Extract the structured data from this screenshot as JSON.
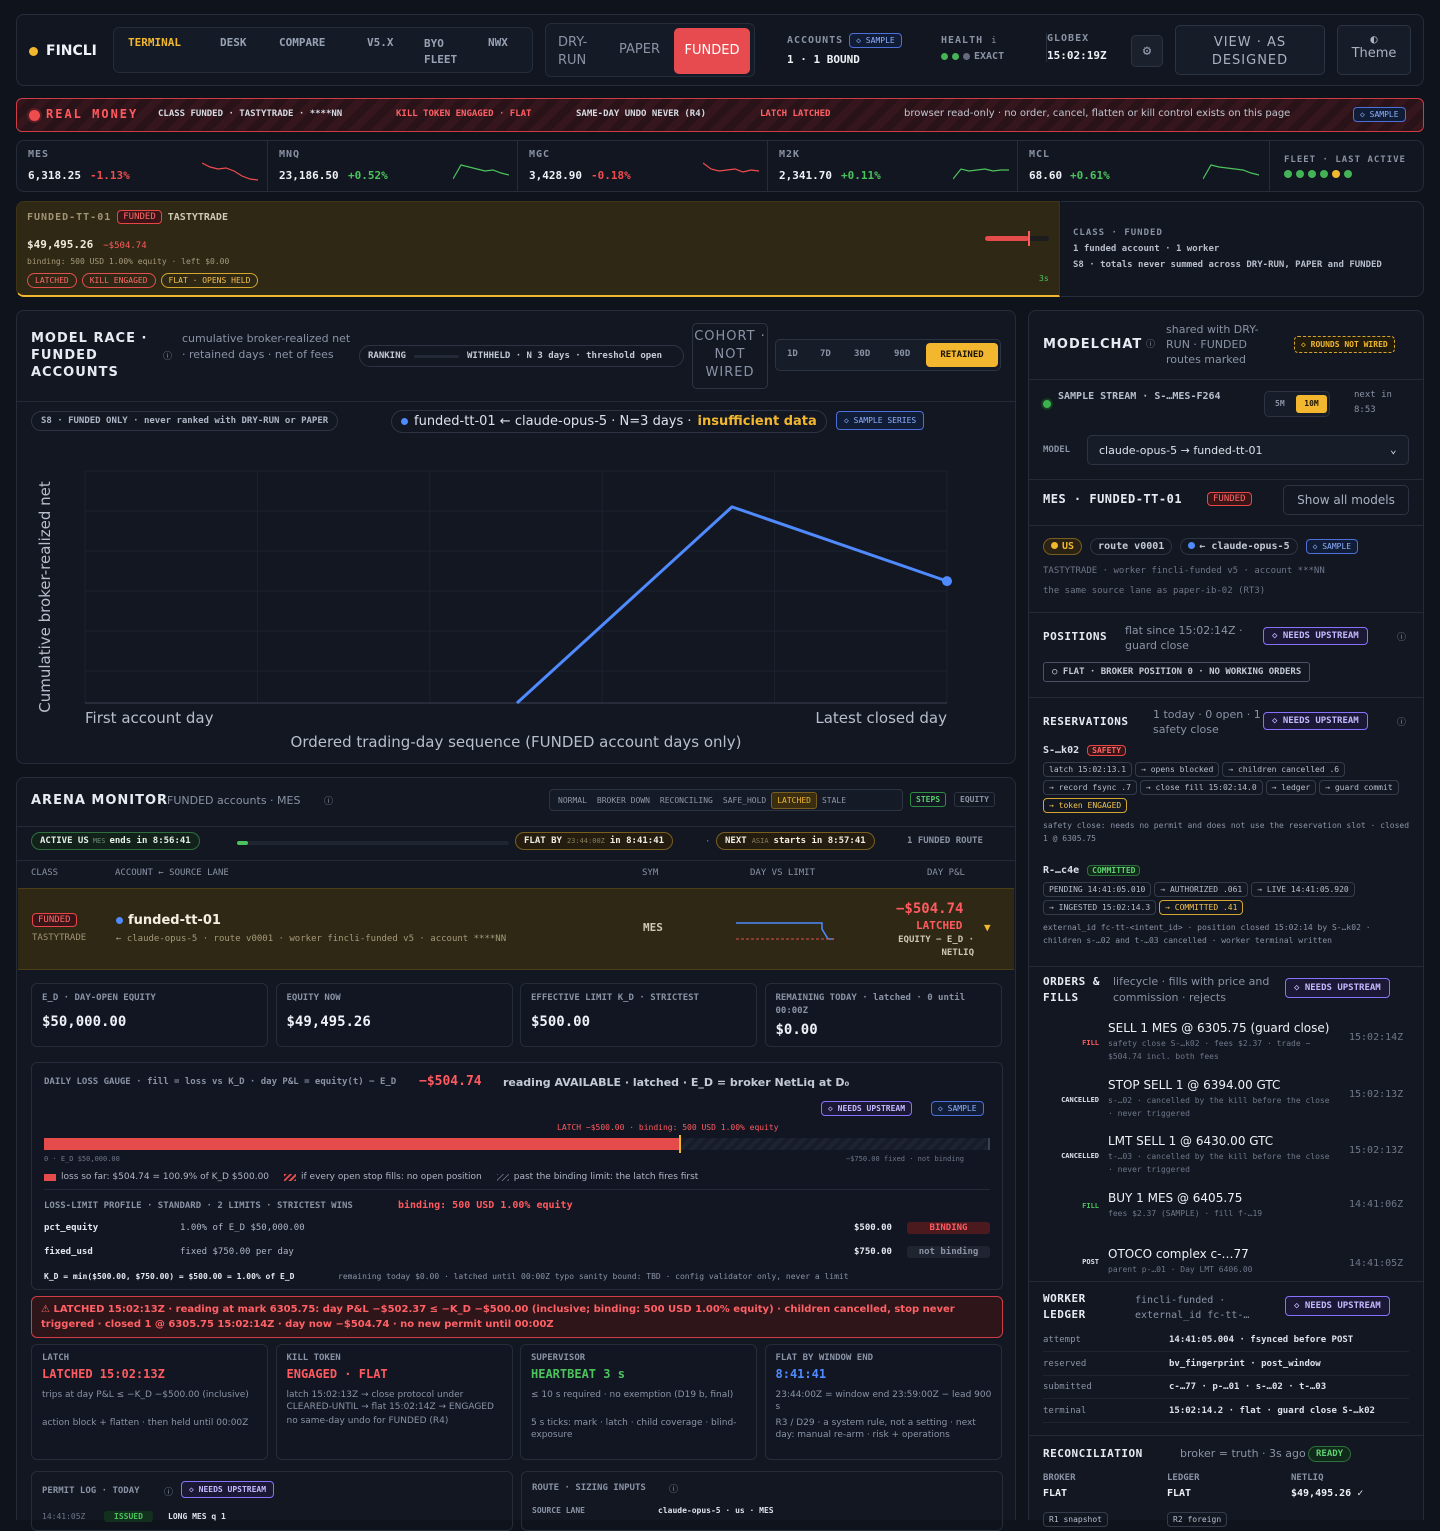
{
  "app": {
    "name": "FINCLI",
    "nav": [
      "TERMINAL",
      "DESK",
      "COMPARE",
      "V5.X",
      "BYO FLEET",
      "NWX"
    ],
    "modes": [
      "DRY-RUN",
      "PAPER",
      "FUNDED"
    ],
    "accounts_label": "ACCOUNTS",
    "accounts_sample": "◇ SAMPLE",
    "accounts_value": "1 · 1 BOUND",
    "health_label": "HEALTH",
    "health_value": "EXACT",
    "globex_label": "GLOBEX",
    "globex_value": "15:02:19Z",
    "view_label": "VIEW · AS DESIGNED",
    "theme_label": "Theme"
  },
  "banner": {
    "title": "REAL MONEY",
    "class": "CLASS FUNDED · TASTYTRADE · ****NN",
    "kill": "KILL TOKEN ENGAGED · FLAT",
    "undo": "SAME-DAY UNDO NEVER (R4)",
    "latch": "LATCH LATCHED",
    "readonly": "browser read-only · no order, cancel, flatten or kill control exists on this page",
    "sample": "◇ SAMPLE"
  },
  "tickers": [
    {
      "sym": "MES",
      "price": "6,318.25",
      "chg": "-1.13%",
      "up": false
    },
    {
      "sym": "MNQ",
      "price": "23,186.50",
      "chg": "+0.52%",
      "up": true
    },
    {
      "sym": "MGC",
      "price": "3,428.90",
      "chg": "-0.18%",
      "up": false
    },
    {
      "sym": "M2K",
      "price": "2,341.70",
      "chg": "+0.11%",
      "up": true
    },
    {
      "sym": "MCL",
      "price": "68.60",
      "chg": "+0.61%",
      "up": true
    }
  ],
  "fleet": {
    "label": "FLEET · LAST ACTIVE"
  },
  "account": {
    "name": "FUNDED-TT-01",
    "tag": "FUNDED",
    "broker": "TASTYTRADE",
    "equity": "$49,495.26",
    "pl": "−$504.74",
    "binding": "binding: 500 USD 1.00% equity · left $0.00",
    "tags": [
      "LATCHED",
      "KILL ENGAGED",
      "FLAT · OPENS HELD"
    ],
    "age": "3s"
  },
  "class_info": {
    "title": "CLASS · FUNDED",
    "line1": "1 funded account · 1 worker",
    "line2": "S8 · totals never summed across DRY-RUN, PAPER and FUNDED"
  },
  "race": {
    "title": "MODEL RACE · FUNDED ACCOUNTS",
    "sub": "cumulative broker-realized net · retained days · net of fees",
    "ranking": "RANKING",
    "withheld": "WITHHELD · N 3 days · threshold open",
    "cohort": "COHORT · NOT WIRED",
    "ranges": [
      "1D",
      "7D",
      "30D",
      "90D",
      "RETAINED"
    ],
    "s8": "S8 · FUNDED ONLY · never ranked with DRY-RUN or PAPER",
    "series_label": "funded-tt-01 ← claude-opus-5 · N=3 days ·",
    "insufficient": "insufficient data",
    "sample_series": "◇ SAMPLE SERIES"
  },
  "chart_data": {
    "type": "line",
    "title": "",
    "xlabel": "Ordered trading-day sequence (FUNDED account days only)",
    "ylabel": "Cumulative broker-realized net",
    "x_tick_labels": [
      "First account day",
      "Latest closed day"
    ],
    "series": [
      {
        "name": "funded-tt-01 ← claude-opus-5",
        "values": [
          -504.74,
          1120,
          505
        ]
      }
    ],
    "ylim": [
      -504.74,
      1500
    ],
    "grid": true
  },
  "arena": {
    "title": "ARENA MONITOR",
    "sub": "FUNDED accounts · MES",
    "states": [
      "NORMAL",
      "BROKER DOWN",
      "RECONCILING",
      "SAFE_HOLD",
      "LATCHED",
      "STALE"
    ],
    "steps": "STEPS",
    "equity": "EQUITY",
    "active": "ACTIVE US",
    "active_tz": "MES",
    "active_ends": "ends in 8:56:41",
    "flatby": "FLAT BY",
    "flat_tz": "23:44:00Z",
    "flat_in": "in 8:41:41",
    "next": "NEXT",
    "next_tz": "ASIA",
    "next_in": "starts in 8:57:41",
    "routes": "1 FUNDED ROUTE",
    "cols": [
      "CLASS",
      "ACCOUNT ← SOURCE LANE",
      "SYM",
      "DAY VS LIMIT",
      "DAY P&L"
    ],
    "row_tag": "FUNDED",
    "row_broker": "TASTYTRADE",
    "row_account": "funded-tt-01",
    "row_lane": "← claude-opus-5 · route v0001 · worker fincli-funded v5 · account ****NN",
    "row_sym": "MES",
    "row_pl": "−$504.74",
    "row_state": "LATCHED",
    "row_formula": "EQUITY − E_D · NETLIQ"
  },
  "metrics": [
    {
      "label": "E_D · DAY-OPEN EQUITY",
      "value": "$50,000.00"
    },
    {
      "label": "EQUITY NOW",
      "value": "$49,495.26"
    },
    {
      "label": "EFFECTIVE LIMIT K_D · STRICTEST",
      "value": "$500.00"
    },
    {
      "label": "REMAINING TODAY · latched · 0 until 00:00Z",
      "value": "$0.00"
    }
  ],
  "gauge": {
    "title": "DAILY LOSS GAUGE · fill = loss vs K_D · day P&L = equity(t) − E_D",
    "value": "−$504.74",
    "reading": "reading AVAILABLE · latched · E_D = broker NetLiq at D₀",
    "needs": "◇ NEEDS UPSTREAM",
    "sample": "◇ SAMPLE",
    "latch": "LATCH −$500.00 · binding: 500 USD 1.00% equity",
    "left": "0 · E_D $50,000.00",
    "right": "−$750.00 fixed · not binding",
    "legend1": "loss so far: $504.74 = 100.9% of K_D $500.00",
    "legend2": "if every open stop fills: no open position",
    "legend3": "past the binding limit: the latch fires first",
    "fill_fraction": 0.673
  },
  "profile": {
    "title": "LOSS-LIMIT PROFILE · STANDARD · 2 LIMITS · STRICTEST WINS",
    "binding": "binding: 500 USD 1.00% equity",
    "rows": [
      {
        "k": "pct_equity",
        "desc": "1.00% of E_D $50,000.00",
        "val": "$500.00",
        "state": "BINDING"
      },
      {
        "k": "fixed_usd",
        "desc": "fixed $750.00 per day",
        "val": "$750.00",
        "state": "not binding"
      }
    ],
    "kd": "K_D = min($500.00, $750.00) = $500.00 = 1.00% of E_D",
    "kd_note": "remaining today $0.00 · latched until 00:00Z   typo sanity bound: TBD · config validator only, never a limit"
  },
  "alert": "⚠ LATCHED 15:02:13Z · reading at mark 6305.75: day P&L −$502.37 ≤ −K_D −$500.00 (inclusive; binding: 500 USD 1.00% equity) · children cancelled, stop never triggered · closed 1 @ 6305.75 15:02:14Z · day now −$504.74 · no new permit until 00:00Z",
  "cards": [
    {
      "label": "LATCH",
      "value": "LATCHED 15:02:13Z",
      "l1": "trips at day P&L ≤ −K_D −$500.00 (inclusive)",
      "l2": "action block + flatten · then held until 00:00Z"
    },
    {
      "label": "KILL TOKEN",
      "value": "ENGAGED · FLAT",
      "l1": "latch 15:02:13Z → close protocol under CLEARED-UNTIL → flat 15:02:14Z → ENGAGED",
      "l2": "no same-day undo for FUNDED (R4)"
    },
    {
      "label": "SUPERVISOR",
      "value": "HEARTBEAT 3 s",
      "l1": "≤ 10 s required · no exemption (D19 b, final)",
      "l2": "5 s ticks: mark · latch · child coverage · blind-exposure"
    },
    {
      "label": "FLAT BY WINDOW END",
      "value": "8:41:41",
      "l1": "23:44:00Z = window end 23:59:00Z − lead 900 s",
      "l2": "R3 / D29 · a system rule, not a setting · next day: manual re-arm · risk + operations"
    }
  ],
  "permit": {
    "title": "PERMIT LOG · TODAY",
    "needs": "◇ NEEDS UPSTREAM",
    "time": "14:41:05Z",
    "state": "ISSUED",
    "text": "LONG MES q 1"
  },
  "route": {
    "title": "ROUTE · SIZING INPUTS",
    "k": "SOURCE LANE",
    "v": "claude-opus-5 · us · MES"
  },
  "modelchat": {
    "title": "MODELCHAT",
    "sub": "shared with DRY-RUN · FUNDED routes marked",
    "rounds": "◇ ROUNDS NOT WIRED",
    "stream": "SAMPLE STREAM · S-…MES-F264",
    "tabs": [
      "5M",
      "10M"
    ],
    "next": "next in 8:53",
    "model_label": "MODEL",
    "model_value": "claude-opus-5 → funded-tt-01",
    "acct_title": "MES · FUNDED-TT-01",
    "acct_tag": "FUNDED",
    "show_all": "Show all models",
    "us": "US",
    "route": "route v0001",
    "lane": "← claude-opus-5",
    "sample": "◇ SAMPLE",
    "line1": "TASTYTRADE · worker fincli-funded v5 · account ***NN",
    "line2": "the same source lane as paper-ib-02 (RT3)"
  },
  "positions": {
    "title": "POSITIONS",
    "sub": "flat since 15:02:14Z · guard close",
    "needs": "◇ NEEDS UPSTREAM",
    "flat": "○ FLAT · BROKER POSITION 0 · NO WORKING ORDERS"
  },
  "reservations": {
    "title": "RESERVATIONS",
    "sub": "1 today · 0 open · 1 safety close",
    "needs": "◇ NEEDS UPSTREAM",
    "r1": "S-…k02",
    "r1tag": "SAFETY",
    "r1chips": [
      "latch 15:02:13.1",
      "→ opens blocked",
      "→ children cancelled .6",
      "→ record fsync .7",
      "→ close fill 15:02:14.0",
      "→ ledger",
      "→ guard commit",
      "→ token ENGAGED"
    ],
    "r1note": "safety close: needs no permit and does not use the reservation slot · closed 1 @ 6305.75",
    "r2": "R-…c4e",
    "r2tag": "COMMITTED",
    "r2chips": [
      "PENDING 14:41:05.010",
      "→ AUTHORIZED .061",
      "→ LIVE 14:41:05.920",
      "→ INGESTED 15:02:14.3",
      "→ COMMITTED .41"
    ],
    "r2note": "external_id fc-tt-<intent_id> · position closed 15:02:14 by S-…k02 · children s-…02 and t-…03 cancelled · worker terminal written"
  },
  "orders": {
    "title": "ORDERS & FILLS",
    "sub": "lifecycle · fills with price and commission · rejects",
    "needs": "◇ NEEDS UPSTREAM",
    "items": [
      {
        "kind": "FILL",
        "main": "SELL 1 MES @ 6305.75 (guard close)",
        "sub": "safety close S-…k02 · fees $2.37 · trade −$504.74 incl. both fees",
        "time": "15:02:14Z"
      },
      {
        "kind": "CANCELLED",
        "main": "STOP SELL 1 @ 6394.00 GTC",
        "sub": "s-…02 · cancelled by the kill before the close · never triggered",
        "time": "15:02:13Z"
      },
      {
        "kind": "CANCELLED",
        "main": "LMT SELL 1 @ 6430.00 GTC",
        "sub": "t-…03 · cancelled by the kill before the close · never triggered",
        "time": "15:02:13Z"
      },
      {
        "kind": "FILL",
        "main": "BUY 1 MES @ 6405.75",
        "sub": "fees $2.37 (SAMPLE) · fill f-…19",
        "time": "14:41:06Z"
      },
      {
        "kind": "POST",
        "main": "OTOCO complex c-…77",
        "sub": "parent p-…01 · Day LMT 6406.00",
        "time": "14:41:05Z"
      }
    ]
  },
  "ledger": {
    "title": "WORKER LEDGER",
    "sub": "fincli-funded · external_id fc-tt-…",
    "needs": "◇ NEEDS UPSTREAM",
    "rows": [
      {
        "k": "attempt",
        "v": "14:41:05.004 · fsynced before POST"
      },
      {
        "k": "reserved",
        "v": "bv_fingerprint · post_window"
      },
      {
        "k": "submitted",
        "v": "c-…77 · p-…01 · s-…02 · t-…03"
      },
      {
        "k": "terminal",
        "v": "15:02:14.2 · flat · guard close S-…k02"
      }
    ]
  },
  "recon": {
    "title": "RECONCILIATION",
    "sub": "broker = truth · 3s ago",
    "ready": "READY",
    "cols": [
      {
        "k": "BROKER",
        "v": "FLAT"
      },
      {
        "k": "LEDGER",
        "v": "FLAT"
      },
      {
        "k": "NETLIQ",
        "v": "$49,495.26 ✓"
      }
    ],
    "foot": [
      "R1 snapshot",
      "R2 foreign"
    ]
  }
}
